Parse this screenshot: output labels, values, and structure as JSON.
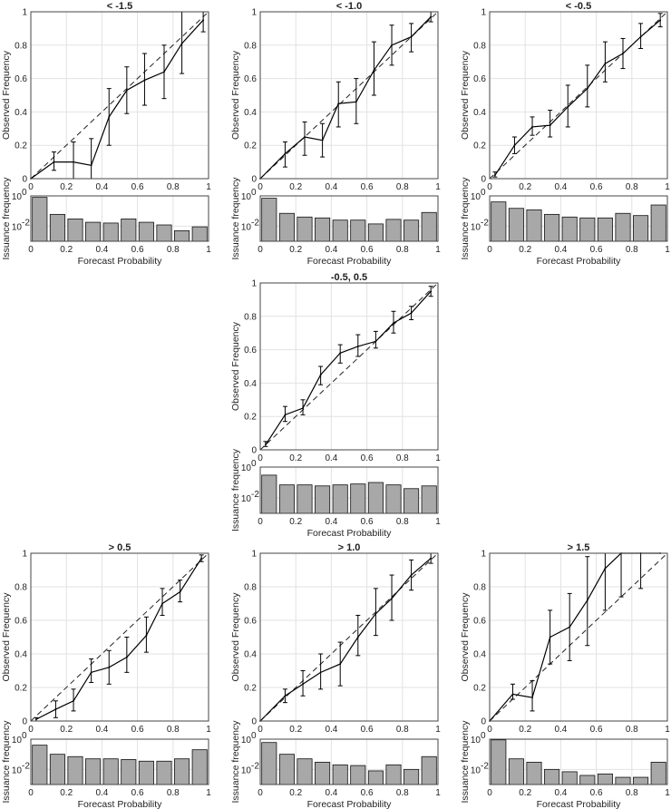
{
  "figure": {
    "x_axis_label": "Forecast Probability",
    "y_axis_label_top": "Observed Frequency",
    "y_axis_label_bottom": "Issuance frequency",
    "x_ticks": [
      "0",
      "0.2",
      "0.4",
      "0.6",
      "0.8",
      "1"
    ],
    "y_ticks_top": [
      "0",
      "0.2",
      "0.4",
      "0.6",
      "0.8",
      "1"
    ],
    "y_ticks_bottom": [
      {
        "base": "10",
        "exp": "0"
      },
      {
        "base": "10",
        "exp": "-2"
      }
    ]
  },
  "colors": {
    "line": "#000000",
    "bar_fill": "#a8a8a8",
    "grid": "#e2e2e2",
    "axis": "#444444"
  },
  "chart_data": [
    {
      "type": "line",
      "title": "< -1.5",
      "xlabel": "Forecast Probability",
      "ylabel": "Observed Frequency",
      "xlim": [
        0,
        1
      ],
      "ylim": [
        0,
        1
      ],
      "reference_line": "diagonal, dashed",
      "x": [
        0,
        0.13,
        0.24,
        0.34,
        0.44,
        0.54,
        0.64,
        0.75,
        0.85,
        0.97
      ],
      "y": [
        0,
        0.1,
        0.1,
        0.08,
        0.37,
        0.53,
        0.59,
        0.64,
        0.81,
        0.95
      ],
      "err_low": [
        0,
        0.05,
        0,
        0,
        0.2,
        0.39,
        0.44,
        0.48,
        0.63,
        0.88
      ],
      "err_high": [
        0,
        0.16,
        0.22,
        0.24,
        0.54,
        0.67,
        0.75,
        0.8,
        1,
        1
      ],
      "issuance": {
        "type": "bar",
        "yscale": "log",
        "ylim": [
          0.001,
          1
        ],
        "centers": [
          0.05,
          0.15,
          0.25,
          0.35,
          0.45,
          0.55,
          0.65,
          0.75,
          0.85,
          0.95
        ],
        "values": [
          0.8,
          0.06,
          0.03,
          0.018,
          0.016,
          0.03,
          0.018,
          0.012,
          0.005,
          0.009
        ]
      }
    },
    {
      "type": "line",
      "title": "< -1.0",
      "xlabel": "Forecast Probability",
      "ylabel": "Observed Frequency",
      "xlim": [
        0,
        1
      ],
      "ylim": [
        0,
        1
      ],
      "reference_line": "diagonal, dashed",
      "x": [
        0,
        0.14,
        0.25,
        0.35,
        0.44,
        0.54,
        0.64,
        0.74,
        0.85,
        0.96
      ],
      "y": [
        0,
        0.15,
        0.25,
        0.23,
        0.45,
        0.46,
        0.65,
        0.8,
        0.85,
        0.97
      ],
      "err_low": [
        0,
        0.07,
        0.14,
        0.13,
        0.31,
        0.33,
        0.5,
        0.68,
        0.76,
        0.94
      ],
      "err_high": [
        0,
        0.22,
        0.34,
        0.33,
        0.58,
        0.6,
        0.82,
        0.92,
        0.93,
        1
      ],
      "issuance": {
        "type": "bar",
        "yscale": "log",
        "ylim": [
          0.001,
          1
        ],
        "centers": [
          0.05,
          0.15,
          0.25,
          0.35,
          0.45,
          0.55,
          0.65,
          0.75,
          0.85,
          0.95
        ],
        "values": [
          0.7,
          0.07,
          0.04,
          0.035,
          0.025,
          0.025,
          0.014,
          0.028,
          0.025,
          0.08
        ]
      }
    },
    {
      "type": "line",
      "title": "< -0.5",
      "xlabel": "Forecast Probability",
      "ylabel": "Observed Frequency",
      "xlim": [
        0,
        1
      ],
      "ylim": [
        0,
        1
      ],
      "reference_line": "diagonal, dashed",
      "x": [
        0.03,
        0.14,
        0.24,
        0.34,
        0.44,
        0.55,
        0.65,
        0.75,
        0.85,
        0.96
      ],
      "y": [
        0.02,
        0.2,
        0.31,
        0.32,
        0.43,
        0.54,
        0.69,
        0.75,
        0.85,
        0.95
      ],
      "err_low": [
        0.01,
        0.15,
        0.26,
        0.25,
        0.31,
        0.43,
        0.58,
        0.66,
        0.78,
        0.91
      ],
      "err_high": [
        0.04,
        0.25,
        0.37,
        0.41,
        0.56,
        0.68,
        0.82,
        0.84,
        0.93,
        0.99
      ],
      "issuance": {
        "type": "bar",
        "yscale": "log",
        "ylim": [
          0.001,
          1
        ],
        "centers": [
          0.05,
          0.15,
          0.25,
          0.35,
          0.45,
          0.55,
          0.65,
          0.75,
          0.85,
          0.95
        ],
        "values": [
          0.4,
          0.15,
          0.12,
          0.06,
          0.04,
          0.035,
          0.035,
          0.07,
          0.05,
          0.25
        ]
      }
    },
    {
      "type": "line",
      "title": "-0.5, 0.5",
      "xlabel": "Forecast Probability",
      "ylabel": "Observed Frequency",
      "xlim": [
        0,
        1
      ],
      "ylim": [
        0,
        1
      ],
      "reference_line": "diagonal, dashed",
      "x": [
        0.03,
        0.14,
        0.24,
        0.34,
        0.45,
        0.55,
        0.65,
        0.75,
        0.85,
        0.96
      ],
      "y": [
        0.03,
        0.21,
        0.25,
        0.45,
        0.58,
        0.62,
        0.65,
        0.76,
        0.82,
        0.95
      ],
      "err_low": [
        0.02,
        0.17,
        0.21,
        0.39,
        0.52,
        0.56,
        0.61,
        0.7,
        0.78,
        0.92
      ],
      "err_high": [
        0.05,
        0.26,
        0.3,
        0.5,
        0.63,
        0.69,
        0.71,
        0.83,
        0.86,
        0.98
      ],
      "issuance": {
        "type": "bar",
        "yscale": "log",
        "ylim": [
          0.001,
          1
        ],
        "centers": [
          0.05,
          0.15,
          0.25,
          0.35,
          0.45,
          0.55,
          0.65,
          0.75,
          0.85,
          0.95
        ],
        "values": [
          0.3,
          0.07,
          0.07,
          0.06,
          0.07,
          0.08,
          0.1,
          0.07,
          0.04,
          0.06
        ]
      }
    },
    {
      "type": "line",
      "title": "> 0.5",
      "xlabel": "Forecast Probability",
      "ylabel": "Observed Frequency",
      "xlim": [
        0,
        1
      ],
      "ylim": [
        0,
        1
      ],
      "reference_line": "diagonal, dashed",
      "x": [
        0.03,
        0.14,
        0.24,
        0.34,
        0.44,
        0.54,
        0.65,
        0.74,
        0.84,
        0.96
      ],
      "y": [
        0.01,
        0.07,
        0.12,
        0.29,
        0.32,
        0.38,
        0.51,
        0.7,
        0.77,
        0.97
      ],
      "err_low": [
        0,
        0.02,
        0.06,
        0.23,
        0.22,
        0.29,
        0.41,
        0.63,
        0.71,
        0.95
      ],
      "err_high": [
        0.02,
        0.12,
        0.19,
        0.37,
        0.42,
        0.5,
        0.62,
        0.79,
        0.84,
        0.99
      ],
      "issuance": {
        "type": "bar",
        "yscale": "log",
        "ylim": [
          0.001,
          1
        ],
        "centers": [
          0.05,
          0.15,
          0.25,
          0.35,
          0.45,
          0.55,
          0.65,
          0.75,
          0.85,
          0.95
        ],
        "values": [
          0.4,
          0.1,
          0.07,
          0.05,
          0.05,
          0.045,
          0.035,
          0.035,
          0.05,
          0.2
        ]
      }
    },
    {
      "type": "line",
      "title": "> 1.0",
      "xlabel": "Forecast Probability",
      "ylabel": "Observed Frequency",
      "xlim": [
        0,
        1
      ],
      "ylim": [
        0,
        1
      ],
      "reference_line": "diagonal, dashed",
      "x": [
        0,
        0.14,
        0.24,
        0.34,
        0.45,
        0.55,
        0.65,
        0.74,
        0.85,
        0.96
      ],
      "y": [
        0,
        0.15,
        0.22,
        0.29,
        0.34,
        0.5,
        0.64,
        0.73,
        0.87,
        0.97
      ],
      "err_low": [
        0,
        0.11,
        0.15,
        0.19,
        0.21,
        0.39,
        0.51,
        0.6,
        0.78,
        0.94
      ],
      "err_high": [
        0,
        0.19,
        0.3,
        0.4,
        0.47,
        0.63,
        0.79,
        0.87,
        0.96,
        1
      ],
      "issuance": {
        "type": "bar",
        "yscale": "log",
        "ylim": [
          0.001,
          1
        ],
        "centers": [
          0.05,
          0.15,
          0.25,
          0.35,
          0.45,
          0.55,
          0.65,
          0.75,
          0.85,
          0.95
        ],
        "values": [
          0.6,
          0.1,
          0.05,
          0.03,
          0.02,
          0.018,
          0.008,
          0.02,
          0.01,
          0.07
        ]
      }
    },
    {
      "type": "line",
      "title": "> 1.5",
      "xlabel": "Forecast Probability",
      "ylabel": "Observed Frequency",
      "xlim": [
        0,
        1
      ],
      "ylim": [
        0,
        1
      ],
      "reference_line": "diagonal, dashed",
      "x": [
        0,
        0.13,
        0.24,
        0.34,
        0.45,
        0.55,
        0.65,
        0.74,
        0.85,
        0.96
      ],
      "y": [
        0,
        0.16,
        0.14,
        0.5,
        0.56,
        0.72,
        0.91,
        1,
        1,
        1
      ],
      "err_low": [
        0,
        0.13,
        0.06,
        0.34,
        0.36,
        0.45,
        0.66,
        0.74,
        0.79,
        1
      ],
      "err_high": [
        0,
        0.22,
        0.24,
        0.66,
        0.76,
        0.98,
        1,
        1,
        1,
        1
      ],
      "issuance": {
        "type": "bar",
        "yscale": "log",
        "ylim": [
          0.001,
          1
        ],
        "centers": [
          0.05,
          0.15,
          0.25,
          0.35,
          0.45,
          0.55,
          0.65,
          0.75,
          0.85,
          0.95
        ],
        "values": [
          0.9,
          0.05,
          0.03,
          0.01,
          0.007,
          0.004,
          0.005,
          0.003,
          0.003,
          0.03
        ]
      }
    }
  ]
}
